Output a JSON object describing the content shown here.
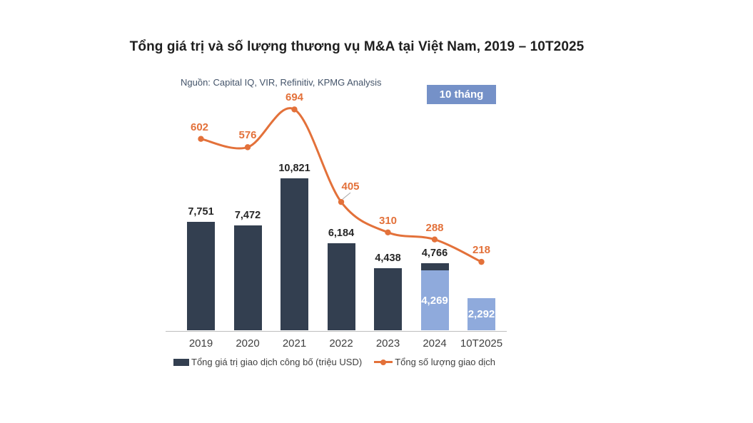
{
  "title": "Tổng giá trị và số lượng thương vụ M&A tại Việt Nam, 2019 – 10T2025",
  "source_note": "Nguồn: Capital IQ, VIR, Refinitiv, KPMG Analysis",
  "period_badge": "10 tháng",
  "legend": {
    "bar_label": "Tổng giá trị giao dịch công bố (triệu USD)",
    "line_label": "Tổng số lượng giao dịch"
  },
  "colors": {
    "bar_dark": "#333f50",
    "bar_light": "#8faadc",
    "badge_bg": "#7591c8",
    "line": "#e3713a",
    "line_label": "#e3713a",
    "bar_label": "#262626",
    "inside_label": "#ffffff",
    "axis": "#bdbdbd",
    "leader": "#a6a6a6"
  },
  "chart_data": {
    "type": "combo (stacked bar + smoothed line)",
    "title": "Tổng giá trị và số lượng thương vụ M&A tại Việt Nam, 2019 – 10T2025",
    "source": "Nguồn: Capital IQ, VIR, Refinitiv, KPMG Analysis",
    "annotation_badge": "10 tháng",
    "categories": [
      "2019",
      "2020",
      "2021",
      "2022",
      "2023",
      "2024",
      "10T2025"
    ],
    "bar_series": {
      "name": "Tổng giá trị giao dịch công bố (triệu USD)",
      "totals": [
        7751,
        7472,
        10821,
        6184,
        4438,
        4766,
        2292
      ],
      "total_labels": [
        "7,751",
        "7,472",
        "10,821",
        "6,184",
        "4,438",
        "4,766",
        ""
      ],
      "bars": [
        {
          "category": "2019",
          "segments": [
            {
              "part": "dark",
              "value": 7751
            }
          ]
        },
        {
          "category": "2020",
          "segments": [
            {
              "part": "dark",
              "value": 7472
            }
          ]
        },
        {
          "category": "2021",
          "segments": [
            {
              "part": "dark",
              "value": 10821
            }
          ]
        },
        {
          "category": "2022",
          "segments": [
            {
              "part": "dark",
              "value": 6184
            }
          ]
        },
        {
          "category": "2023",
          "segments": [
            {
              "part": "dark",
              "value": 4438
            }
          ]
        },
        {
          "category": "2024",
          "segments": [
            {
              "part": "light",
              "value": 4269,
              "inside_label": "4,269"
            },
            {
              "part": "dark",
              "value": 497
            }
          ]
        },
        {
          "category": "10T2025",
          "segments": [
            {
              "part": "light",
              "value": 2292,
              "inside_label": "2,292"
            }
          ]
        }
      ]
    },
    "line_series": {
      "name": "Tổng số lượng giao dịch",
      "values": [
        602,
        576,
        694,
        405,
        310,
        288,
        218
      ],
      "value_labels": [
        "602",
        "576",
        "694",
        "405",
        "310",
        "288",
        "218"
      ]
    },
    "bar_ylim": [
      0,
      12000
    ],
    "line_ylim": [
      0,
      720
    ],
    "grid": false,
    "legend_position": "bottom"
  }
}
